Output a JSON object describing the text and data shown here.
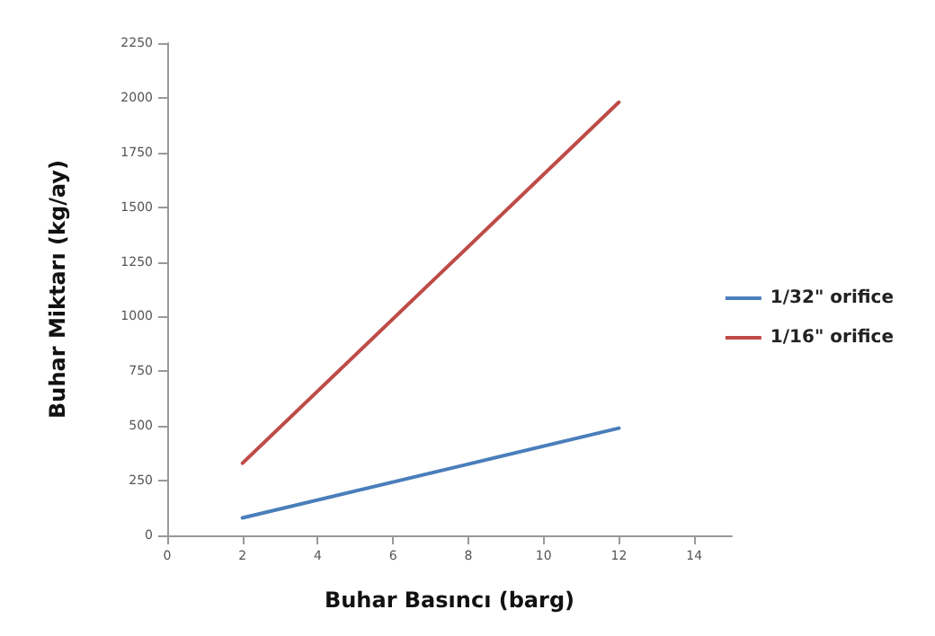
{
  "chart_data": {
    "type": "line",
    "xlabel": "Buhar Basıncı (barg)",
    "ylabel": "Buhar Miktarı (kg/ay)",
    "x": [
      2,
      12
    ],
    "series": [
      {
        "name": "1/32\" orifice",
        "color": "#4a7ebb",
        "values": [
          80,
          490
        ]
      },
      {
        "name": "1/16\" orifice",
        "color": "#be4b48",
        "values": [
          330,
          1980
        ]
      }
    ],
    "xlim": [
      0,
      15
    ],
    "xticks": [
      0,
      2,
      4,
      6,
      8,
      10,
      12,
      14
    ],
    "ylim": [
      0,
      2250
    ],
    "yticks": [
      0,
      250,
      500,
      750,
      1000,
      1250,
      1500,
      1750,
      2000,
      2250
    ],
    "grid": false,
    "legend": "right",
    "marker": "none",
    "line_style": "solid"
  }
}
